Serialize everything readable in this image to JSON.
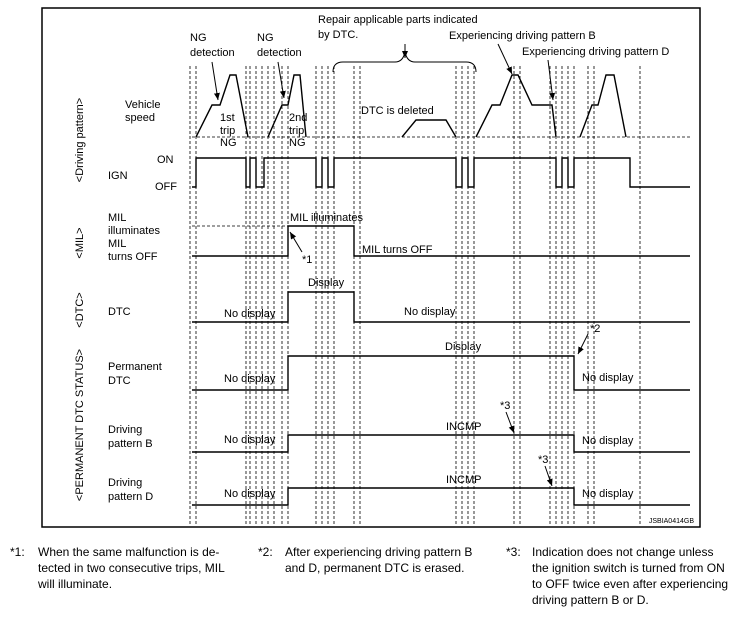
{
  "section_labels": [
    "<Driving pattern>",
    "<MIL>",
    "<DTC>",
    "<PERMANENT DTC STATUS>"
  ],
  "annotations": {
    "repair": [
      "Repair applicable parts indicated",
      "by DTC."
    ],
    "ng_detection_1": [
      "NG",
      "detection"
    ],
    "ng_detection_2": [
      "NG",
      "detection"
    ],
    "experiencing_b": "Experiencing driving pattern B",
    "experiencing_d": "Experiencing driving pattern D",
    "first_trip": [
      "1st",
      "trip",
      "NG"
    ],
    "second_trip": [
      "2nd",
      "trip",
      "NG"
    ],
    "dtc_deleted": "DTC is deleted"
  },
  "rows": {
    "vehicle_speed": {
      "label": [
        "Vehicle",
        "speed"
      ]
    },
    "ign": {
      "label": "IGN",
      "on": "ON",
      "off": "OFF"
    },
    "mil": {
      "label_on": [
        "MIL",
        "illuminates"
      ],
      "label_off": [
        "MIL",
        "turns OFF"
      ],
      "state_on": "MIL illuminates",
      "state_off": "MIL turns OFF",
      "note": "*1"
    },
    "dtc": {
      "label": "DTC",
      "before": "No display",
      "during": "Display",
      "after": "No display"
    },
    "permanent_dtc": {
      "label": [
        "Permanent",
        "DTC"
      ],
      "before": "No display",
      "during": "Display",
      "after": "No display",
      "note": "*2"
    },
    "pattern_b": {
      "label": [
        "Driving",
        "pattern B"
      ],
      "before": "No display",
      "during": "INCMP",
      "after": "No display",
      "note": "*3"
    },
    "pattern_d": {
      "label": [
        "Driving",
        "pattern D"
      ],
      "before": "No display",
      "during": "INCMP",
      "after": "No display",
      "note": "*3"
    }
  },
  "figure_id": "JSBIA0414GB",
  "footnotes": [
    {
      "mark": "*1:",
      "lines": [
        "When the same malfunction is de-",
        "tected in two consecutive trips, MIL",
        "will illuminate."
      ]
    },
    {
      "mark": "*2:",
      "lines": [
        "After experiencing driving pattern B",
        "and D, permanent DTC is erased."
      ]
    },
    {
      "mark": "*3:",
      "lines": [
        "Indication does not change unless",
        "the ignition switch is turned from ON",
        "to OFF twice even after experiencing",
        "driving pattern B or D."
      ]
    }
  ]
}
